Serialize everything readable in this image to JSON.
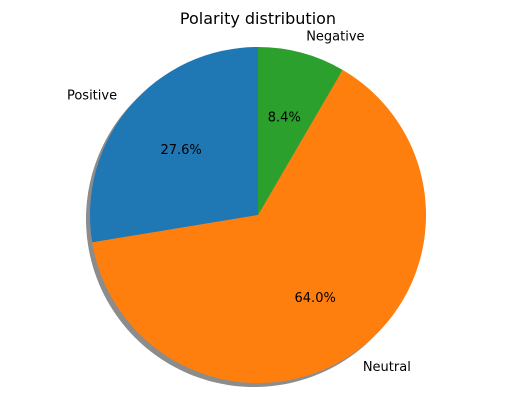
{
  "chart_data": {
    "type": "pie",
    "title": "Polarity distribution",
    "slices": [
      {
        "label": "Positive",
        "value": 27.6,
        "pct_label": "27.6%",
        "color": "#1f77b4"
      },
      {
        "label": "Neutral",
        "value": 64.0,
        "pct_label": "64.0%",
        "color": "#ff7f0e"
      },
      {
        "label": "Negative",
        "value": 8.4,
        "pct_label": "8.4%",
        "color": "#2ca02c"
      }
    ],
    "start_angle_deg": 90,
    "direction": "counterclockwise",
    "shadow": true
  }
}
